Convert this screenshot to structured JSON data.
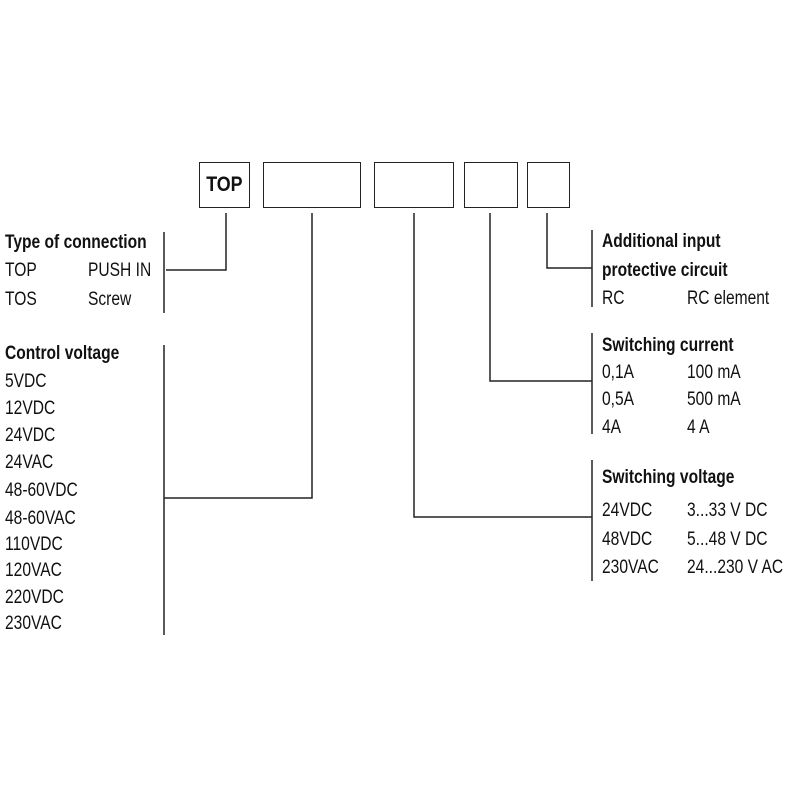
{
  "code_boxes": [
    "TOP",
    "",
    "",
    "",
    ""
  ],
  "connection": {
    "title": "Type of connection",
    "rows": [
      [
        "TOP",
        "PUSH IN"
      ],
      [
        "TOS",
        "Screw"
      ]
    ]
  },
  "control_voltage": {
    "title": "Control voltage",
    "items": [
      "5VDC",
      "12VDC",
      "24VDC",
      "24VAC",
      "48-60VDC",
      "48-60VAC",
      "110VDC",
      "120VAC",
      "220VDC",
      "230VAC"
    ]
  },
  "protective_circuit": {
    "title_line1": "Additional input",
    "title_line2": "protective circuit",
    "rows": [
      [
        "RC",
        "RC element"
      ]
    ]
  },
  "switching_current": {
    "title": "Switching current",
    "rows": [
      [
        "0,1A",
        "100 mA"
      ],
      [
        "0,5A",
        "500 mA"
      ],
      [
        "4A",
        "4 A"
      ]
    ]
  },
  "switching_voltage": {
    "title": "Switching voltage",
    "rows": [
      [
        "24VDC",
        "3...33 V DC"
      ],
      [
        "48VDC",
        "5...48 V DC"
      ],
      [
        "230VAC",
        "24...230 V AC"
      ]
    ]
  }
}
